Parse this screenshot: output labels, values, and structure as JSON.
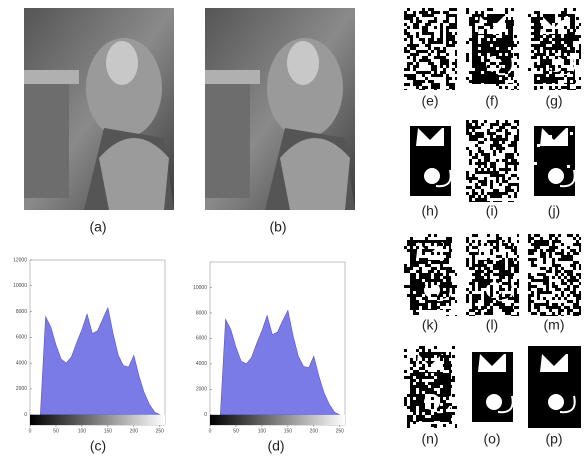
{
  "captions": [
    "(a)",
    "(b)",
    "(c)",
    "(d)",
    "(e)",
    "(f)",
    "(g)",
    "(h)",
    "(i)",
    "(j)",
    "(k)",
    "(l)",
    "(m)",
    "(n)",
    "(o)",
    "(p)"
  ],
  "histograms": [
    {
      "type": "area",
      "color": "#7b7be8",
      "x": [
        20,
        30,
        40,
        50,
        60,
        70,
        80,
        90,
        100,
        110,
        120,
        130,
        140,
        150,
        160,
        170,
        180,
        190,
        200,
        210,
        220,
        230,
        240,
        250
      ],
      "values": [
        100,
        7600,
        6800,
        5400,
        4300,
        4000,
        4500,
        5600,
        6600,
        7800,
        6300,
        6500,
        7400,
        8300,
        6300,
        4600,
        3800,
        3700,
        4600,
        3000,
        1700,
        800,
        200,
        0
      ],
      "xlim": [
        0,
        260
      ],
      "ylim": [
        -800,
        12000
      ],
      "xticks": [
        0,
        50,
        100,
        150,
        200,
        250
      ],
      "yticks": [
        0,
        2000,
        4000,
        6000,
        8000,
        10000,
        12000
      ]
    },
    {
      "type": "area",
      "color": "#7b7be8",
      "x": [
        20,
        30,
        40,
        50,
        60,
        70,
        80,
        90,
        100,
        110,
        120,
        130,
        140,
        150,
        160,
        170,
        180,
        190,
        200,
        210,
        220,
        230,
        240,
        250
      ],
      "values": [
        100,
        7500,
        6700,
        5300,
        4200,
        4000,
        4500,
        5600,
        6600,
        7800,
        6300,
        6500,
        7400,
        8200,
        6200,
        4600,
        3800,
        3700,
        4600,
        3000,
        1700,
        800,
        200,
        0
      ],
      "xlim": [
        0,
        260
      ],
      "ylim": [
        -800,
        12000
      ],
      "xticks": [
        0,
        50,
        100,
        150,
        200,
        250
      ],
      "yticks": [
        0,
        2000,
        4000,
        6000,
        8000,
        10000
      ]
    }
  ]
}
